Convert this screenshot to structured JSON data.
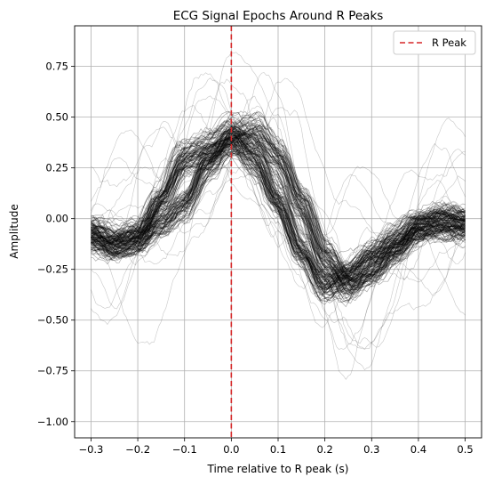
{
  "chart_data": {
    "type": "line",
    "title": "ECG Signal Epochs Around R Peaks",
    "xlabel": "Time relative to R peak (s)",
    "ylabel": "Amplitude",
    "xlim": [
      -0.335,
      0.535
    ],
    "ylim": [
      -1.08,
      0.95
    ],
    "x_ticks": [
      -0.3,
      -0.2,
      -0.1,
      0.0,
      0.1,
      0.2,
      0.3,
      0.4,
      0.5
    ],
    "x_tick_labels": [
      "−0.3",
      "−0.2",
      "−0.1",
      "0.0",
      "0.1",
      "0.2",
      "0.3",
      "0.4",
      "0.5"
    ],
    "y_ticks": [
      -1.0,
      -0.75,
      -0.5,
      -0.25,
      0.0,
      0.25,
      0.5,
      0.75
    ],
    "y_tick_labels": [
      "−1.00",
      "−0.75",
      "−0.50",
      "−0.25",
      "0.00",
      "0.25",
      "0.50",
      "0.75"
    ],
    "grid": true,
    "legend": {
      "placement": "top-right",
      "entries": [
        {
          "label": "R Peak",
          "color": "#d62728",
          "style": "dashed"
        }
      ]
    },
    "r_peak_line": {
      "x": 0.0,
      "color": "#d62728"
    },
    "epoch_color": "#000000",
    "template": {
      "x": [
        -0.3,
        -0.25,
        -0.2,
        -0.15,
        -0.1,
        -0.05,
        0.0,
        0.05,
        0.1,
        0.15,
        0.2,
        0.25,
        0.3,
        0.35,
        0.4,
        0.45,
        0.5
      ],
      "y": [
        -0.05,
        -0.12,
        -0.08,
        0.1,
        0.3,
        0.35,
        0.42,
        0.3,
        0.1,
        -0.15,
        -0.33,
        -0.28,
        -0.18,
        -0.1,
        -0.03,
        -0.02,
        -0.02
      ]
    },
    "shifted_template": {
      "x": [
        -0.3,
        -0.25,
        -0.2,
        -0.15,
        -0.1,
        -0.05,
        0.0,
        0.05,
        0.1,
        0.15,
        0.2,
        0.25,
        0.3,
        0.35,
        0.4,
        0.45,
        0.5
      ],
      "y": [
        -0.1,
        -0.12,
        -0.1,
        -0.02,
        0.08,
        0.28,
        0.4,
        0.42,
        0.3,
        0.08,
        -0.18,
        -0.32,
        -0.25,
        -0.15,
        -0.05,
        0.0,
        -0.02
      ]
    },
    "epoch_count": 160
  }
}
